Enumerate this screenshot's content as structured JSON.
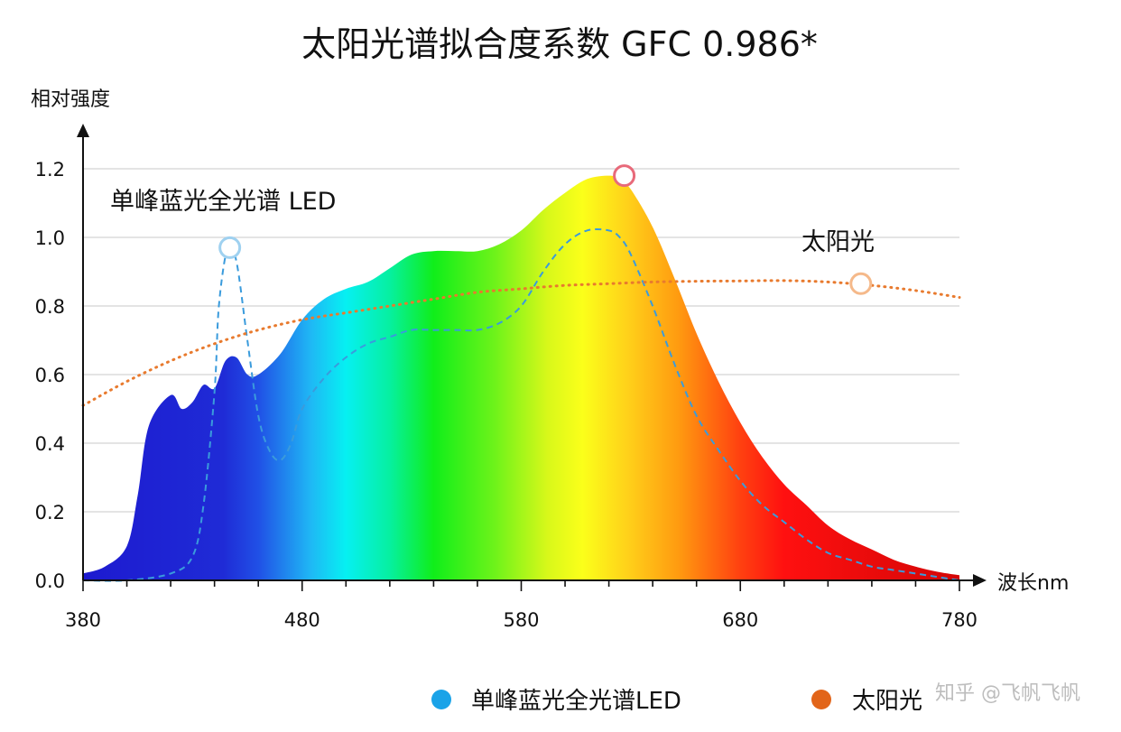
{
  "chart_data": {
    "type": "area",
    "title": "太阳光谱拟合度系数 GFC 0.986*",
    "ylabel": "相对强度",
    "xlabel": "波长nm",
    "xlim": [
      380,
      780
    ],
    "ylim": [
      0,
      1.2
    ],
    "x_ticks": [
      380,
      480,
      580,
      680,
      780
    ],
    "y_ticks": [
      "0.0",
      "0.2",
      "0.4",
      "0.6",
      "0.8",
      "1.0",
      "1.2"
    ],
    "y_tick_values": [
      0,
      0.2,
      0.4,
      0.6,
      0.8,
      1.0,
      1.2
    ],
    "grid": "horizontal",
    "series": [
      {
        "name": "单峰蓝光全光谱LED",
        "style": "dashed",
        "color": "#3a9bdc",
        "x": [
          380,
          400,
          420,
          430,
          435,
          440,
          442,
          446,
          450,
          455,
          460,
          465,
          470,
          475,
          480,
          490,
          500,
          510,
          520,
          530,
          540,
          550,
          560,
          570,
          580,
          590,
          600,
          610,
          620,
          625,
          630,
          640,
          650,
          660,
          670,
          680,
          690,
          700,
          710,
          720,
          730,
          740,
          750,
          760,
          770,
          780
        ],
        "y": [
          0.0,
          0.0,
          0.02,
          0.07,
          0.22,
          0.55,
          0.8,
          0.97,
          0.93,
          0.7,
          0.48,
          0.38,
          0.35,
          0.4,
          0.5,
          0.59,
          0.65,
          0.69,
          0.71,
          0.73,
          0.73,
          0.73,
          0.73,
          0.75,
          0.8,
          0.9,
          0.98,
          1.02,
          1.02,
          1.0,
          0.95,
          0.8,
          0.63,
          0.48,
          0.38,
          0.29,
          0.22,
          0.17,
          0.12,
          0.08,
          0.06,
          0.04,
          0.03,
          0.02,
          0.01,
          0.0
        ]
      },
      {
        "name": "太阳光",
        "style": "dotted",
        "color": "#e87a2e",
        "x": [
          380,
          400,
          420,
          440,
          460,
          480,
          500,
          520,
          540,
          560,
          580,
          600,
          620,
          640,
          660,
          680,
          700,
          720,
          740,
          760,
          780
        ],
        "y": [
          0.51,
          0.58,
          0.64,
          0.69,
          0.73,
          0.76,
          0.78,
          0.8,
          0.82,
          0.84,
          0.85,
          0.86,
          0.865,
          0.87,
          0.872,
          0.873,
          0.874,
          0.87,
          0.86,
          0.845,
          0.825
        ]
      },
      {
        "name": "spectrum_area",
        "style": "filled-rainbow",
        "x": [
          380,
          390,
          400,
          405,
          410,
          420,
          425,
          430,
          435,
          440,
          445,
          450,
          455,
          460,
          470,
          480,
          490,
          500,
          510,
          520,
          530,
          540,
          550,
          560,
          570,
          580,
          590,
          600,
          610,
          620,
          625,
          630,
          640,
          650,
          660,
          670,
          680,
          690,
          700,
          710,
          720,
          730,
          740,
          750,
          760,
          770,
          780
        ],
        "y": [
          0.02,
          0.04,
          0.1,
          0.25,
          0.45,
          0.54,
          0.5,
          0.52,
          0.57,
          0.56,
          0.64,
          0.65,
          0.6,
          0.6,
          0.66,
          0.76,
          0.82,
          0.85,
          0.87,
          0.91,
          0.95,
          0.96,
          0.96,
          0.96,
          0.98,
          1.02,
          1.08,
          1.13,
          1.17,
          1.18,
          1.17,
          1.14,
          1.03,
          0.88,
          0.72,
          0.58,
          0.46,
          0.36,
          0.28,
          0.22,
          0.16,
          0.12,
          0.09,
          0.06,
          0.04,
          0.025,
          0.015
        ]
      }
    ],
    "markers": [
      {
        "x": 447,
        "y": 0.97,
        "color": "#9fd1f0"
      },
      {
        "x": 627,
        "y": 1.18,
        "color": "#e86a7a"
      },
      {
        "x": 735,
        "y": 0.865,
        "color": "#f5b98a"
      }
    ],
    "annotations": [
      {
        "text": "单峰蓝光全光谱 LED"
      },
      {
        "text": "太阳光"
      }
    ],
    "legend": {
      "position": "bottom",
      "entries": [
        {
          "label": "单峰蓝光全光谱LED",
          "color": "#1aa3e8"
        },
        {
          "label": "太阳光",
          "color": "#e2651a"
        }
      ]
    }
  },
  "watermark": "知乎 @飞帆飞帆"
}
